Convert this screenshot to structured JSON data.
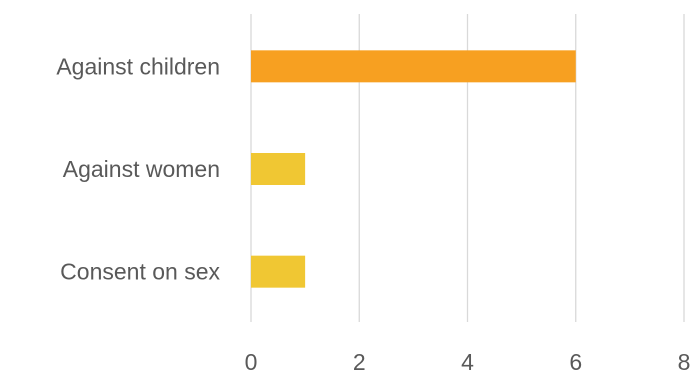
{
  "chart_data": {
    "type": "bar",
    "orientation": "horizontal",
    "categories": [
      "Against children",
      "Against women",
      "Consent on sex"
    ],
    "values": [
      6,
      1,
      1
    ],
    "bar_colors": [
      "#F7A021",
      "#F0C733",
      "#F0C733"
    ],
    "xlim": [
      0,
      8
    ],
    "x_ticks": [
      0,
      2,
      4,
      6,
      8
    ],
    "grid": true,
    "title": "",
    "xlabel": "",
    "ylabel": "",
    "legend": "none"
  }
}
